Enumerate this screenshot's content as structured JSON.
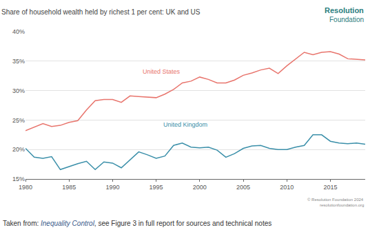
{
  "chart_data": {
    "type": "line",
    "title": "Share of household wealth held by richest 1 per cent: UK and US",
    "x": [
      1980,
      1981,
      1982,
      1983,
      1984,
      1985,
      1986,
      1987,
      1988,
      1989,
      1990,
      1991,
      1992,
      1993,
      1994,
      1995,
      1996,
      1997,
      1998,
      1999,
      2000,
      2001,
      2002,
      2003,
      2004,
      2005,
      2006,
      2007,
      2008,
      2009,
      2010,
      2011,
      2012,
      2013,
      2014,
      2015,
      2016,
      2017,
      2018,
      2019
    ],
    "series": [
      {
        "name": "United States",
        "color": "#e8746c",
        "values": [
          23.2,
          23.8,
          24.4,
          23.9,
          24.1,
          24.6,
          24.9,
          26.7,
          28.3,
          28.5,
          28.5,
          28.0,
          29.1,
          29.0,
          28.9,
          28.8,
          29.4,
          30.2,
          31.3,
          31.6,
          32.3,
          31.9,
          31.3,
          31.3,
          31.8,
          32.6,
          33.0,
          33.5,
          33.8,
          32.9,
          34.2,
          35.4,
          36.5,
          36.1,
          36.5,
          36.6,
          36.2,
          35.4,
          35.3,
          35.2
        ]
      },
      {
        "name": "United Kingdom",
        "color": "#3a8fa9",
        "values": [
          20.2,
          18.7,
          18.5,
          18.8,
          16.6,
          17.1,
          17.6,
          18.0,
          16.6,
          17.9,
          17.7,
          16.9,
          18.3,
          19.6,
          19.1,
          18.5,
          18.9,
          20.7,
          21.1,
          20.4,
          20.3,
          20.4,
          19.9,
          18.7,
          19.3,
          20.2,
          20.6,
          20.7,
          20.2,
          20.0,
          20.0,
          20.4,
          20.7,
          22.5,
          22.5,
          21.4,
          21.1,
          21.0,
          21.1,
          20.9
        ]
      }
    ],
    "xlim": [
      1980,
      2019
    ],
    "xticks": [
      1980,
      1985,
      1990,
      1995,
      2000,
      2005,
      2010,
      2015
    ],
    "ylim": [
      15,
      40
    ],
    "yticks": [
      {
        "value": 15,
        "label": "15%"
      },
      {
        "value": 20,
        "label": "20%"
      },
      {
        "value": 25,
        "label": "25%"
      },
      {
        "value": 30,
        "label": "30%"
      },
      {
        "value": 35,
        "label": "35%"
      },
      {
        "value": 40,
        "label": "40%"
      }
    ],
    "grid": true
  },
  "logo": [
    "Resolution",
    "Foundation"
  ],
  "credit": [
    "© Resolution Foundation 2024",
    "resolutionfoundation.org"
  ],
  "caption": {
    "prefix": "Taken from: ",
    "link": "Inequality Control",
    "suffix": ", see Figure 3 in full report for sources and technical notes"
  }
}
